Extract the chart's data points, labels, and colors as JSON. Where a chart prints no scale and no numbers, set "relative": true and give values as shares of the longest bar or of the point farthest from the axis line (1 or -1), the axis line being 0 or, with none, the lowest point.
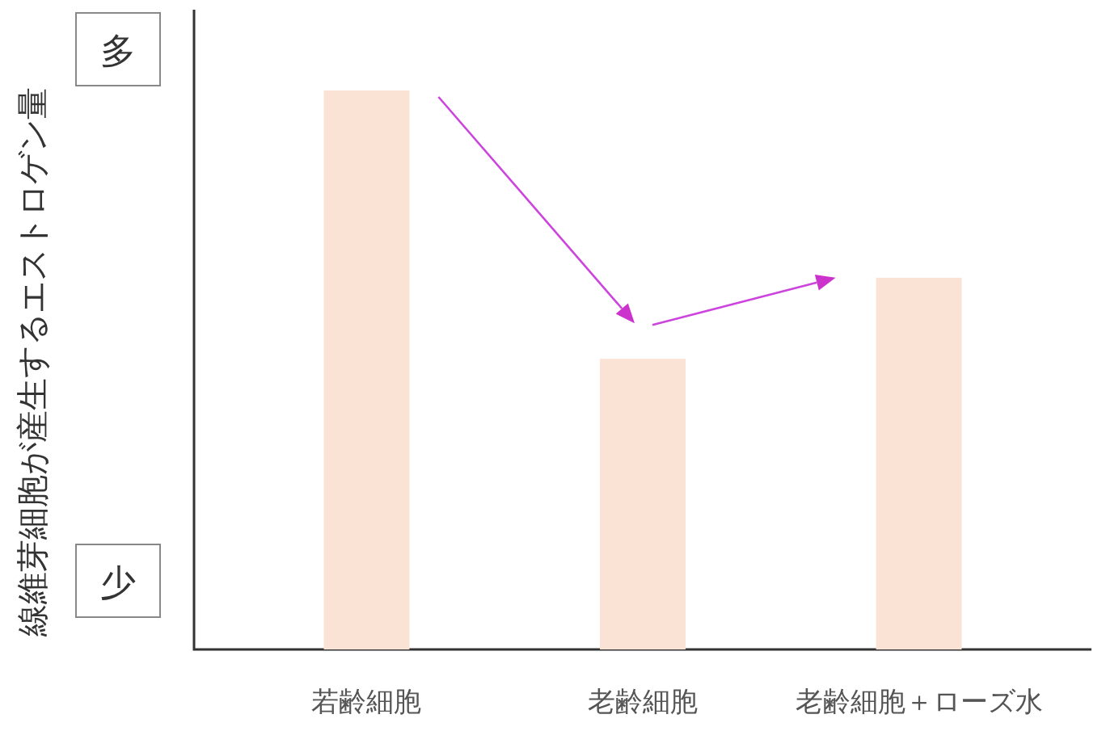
{
  "chart_data": {
    "type": "bar",
    "relative": true,
    "ylabel": "線維芽細胞が産生するエストロゲン量",
    "categories": [
      "若齢細胞",
      "老齢細胞",
      "老齢細胞＋ローズ水"
    ],
    "values": [
      1,
      0.52,
      0.665
    ],
    "color": "#fae3d5",
    "annotations": [
      "多",
      "少"
    ]
  }
}
